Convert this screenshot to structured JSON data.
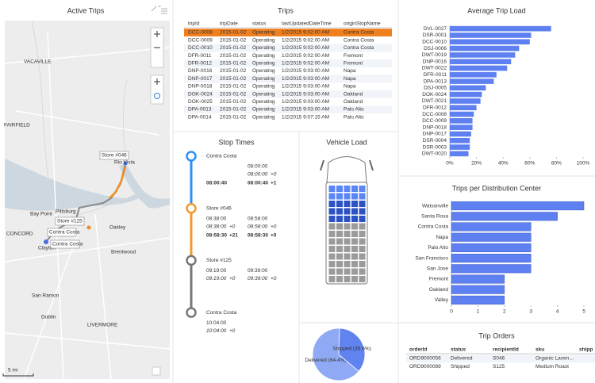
{
  "map": {
    "title": "Active Trips",
    "places": [
      "VACAVILLE",
      "FAIRFIELD",
      "Rio Vista",
      "Bay Point",
      "Pittsburg",
      "Oakley",
      "CONCORD",
      "Clayton",
      "Brentwood",
      "San Ramon",
      "Dublin",
      "LIVERMORE"
    ],
    "markers": [
      "Store #046",
      "Store #125",
      "Contra Costa",
      "Contra Costa"
    ],
    "scale": "5 mi"
  },
  "trips": {
    "title": "Trips",
    "columns": [
      "tripId",
      "tripDate",
      "status",
      "lastUpdatedDateTime",
      "originStopName"
    ],
    "rows": [
      [
        "DCC-0008",
        "2015-01-02",
        "Operating",
        "1/2/2015 9:02:00 AM",
        "Contra Costa"
      ],
      [
        "DCC-0009",
        "2015-01-02",
        "Operating",
        "1/2/2015 9:02:00 AM",
        "Contra Costa"
      ],
      [
        "DCC-0010",
        "2015-01-02",
        "Operating",
        "1/2/2015 9:02:00 AM",
        "Contra Costa"
      ],
      [
        "DFR-0011",
        "2015-01-02",
        "Operating",
        "1/2/2015 9:02:00 AM",
        "Fremont"
      ],
      [
        "DFR-0012",
        "2015-01-02",
        "Operating",
        "1/2/2015 9:02:00 AM",
        "Fremont"
      ],
      [
        "DNP-0016",
        "2015-01-02",
        "Operating",
        "1/2/2015 9:03:00 AM",
        "Napa"
      ],
      [
        "DNP-0017",
        "2015-01-02",
        "Operating",
        "1/2/2015 9:03:00 AM",
        "Napa"
      ],
      [
        "DNP-0018",
        "2015-01-02",
        "Operating",
        "1/2/2015 9:03:00 AM",
        "Napa"
      ],
      [
        "DOK-0024",
        "2015-01-02",
        "Operating",
        "1/2/2015 9:03:00 AM",
        "Oakland"
      ],
      [
        "DOK-0025",
        "2015-01-02",
        "Operating",
        "1/2/2015 9:03:00 AM",
        "Oakland"
      ],
      [
        "DPA-0013",
        "2015-01-02",
        "Operating",
        "1/2/2015 9:03:00 AM",
        "Palo Alto"
      ],
      [
        "DPA-0014",
        "2015-01-02",
        "Operating",
        "1/2/2015 9:07:15 AM",
        "Palo Alto"
      ]
    ],
    "selected_row": 0
  },
  "stop_times": {
    "title": "Stop Times",
    "stops": [
      {
        "name": "Contra Costa",
        "scheduled": {
          "departure": {
            "time": "08:00:00"
          }
        },
        "estimated": {
          "departure": {
            "time": "08:00:00",
            "delta": "+0"
          }
        },
        "actual": {
          "arrival": {
            "time": "08:00:40"
          },
          "departure": {
            "time": "08:00:40",
            "delta": "+1"
          }
        }
      },
      {
        "name": "Store #046",
        "scheduled": {
          "arrival": {
            "time": "08:38:00"
          },
          "departure": {
            "time": "08:58:00"
          }
        },
        "estimated": {
          "arrival": {
            "time": "08:38:00",
            "delta": "+0"
          },
          "departure": {
            "time": "08:58:00",
            "delta": "+0"
          }
        },
        "actual": {
          "arrival": {
            "time": "08:58:30",
            "delta": "+21"
          },
          "departure": {
            "time": "08:58:30",
            "delta": "+0"
          }
        }
      },
      {
        "name": "Store #125",
        "scheduled": {
          "arrival": {
            "time": "09:19:00"
          },
          "departure": {
            "time": "09:39:00"
          }
        },
        "estimated": {
          "arrival": {
            "time": "09:19:00",
            "delta": "+0"
          },
          "departure": {
            "time": "09:39:00",
            "delta": "+0"
          }
        }
      },
      {
        "name": "Contra Costa",
        "scheduled": {
          "arrival": {
            "time": "10:04:00"
          }
        },
        "estimated": {
          "arrival": {
            "time": "10:04:00",
            "delta": "+0"
          }
        }
      }
    ]
  },
  "vehicle_load": {
    "title": "Vehicle Load"
  },
  "chart_data": [
    {
      "type": "hbar",
      "title": "Average Trip Load",
      "categories": [
        "DVL-0027",
        "DSR-0001",
        "DCC-0010",
        "DSJ-0006",
        "DWT-0019",
        "DNP-0016",
        "DWT-0022",
        "DFR-0011",
        "DPA-0013",
        "DSJ-0005",
        "DOK-0024",
        "DWT-0021",
        "DFR-0012",
        "DCC-0008",
        "DCC-0009",
        "DNP-0018",
        "DNP-0017",
        "DSR-0004",
        "DSR-0003",
        "DWT-0020"
      ],
      "values": [
        76,
        61,
        60,
        52,
        49,
        46,
        43,
        35,
        33,
        27,
        24,
        23,
        20,
        18,
        17,
        17,
        16,
        15,
        15,
        14
      ],
      "color": "#5e80f0",
      "xlim": [
        0,
        100
      ],
      "xticks": [
        {
          "value": 0,
          "label": "0%"
        },
        {
          "value": 20,
          "label": "20%"
        },
        {
          "value": 40,
          "label": "40%"
        },
        {
          "value": 60,
          "label": "60%"
        },
        {
          "value": 80,
          "label": "80%"
        },
        {
          "value": 100,
          "label": "100%"
        }
      ]
    },
    {
      "type": "hbar",
      "title": "Trips per Distribution Center",
      "categories": [
        "Watsonville",
        "Santa Rosa",
        "Contra Costa",
        "Napa",
        "Palo Alto",
        "San Francisco",
        "San Jose",
        "Fremont",
        "Oakland",
        "Valley"
      ],
      "values": [
        5,
        4,
        3,
        3,
        3,
        3,
        3,
        2,
        2,
        2
      ],
      "color": "#5e80f0",
      "xlim": [
        0,
        5
      ],
      "xticks": [
        0,
        1,
        2,
        3,
        4,
        5
      ]
    },
    {
      "type": "pie",
      "values": [
        64.4,
        35.6
      ],
      "value_labels": [
        "Delivered (64.4%)",
        "Shipped (35.6%)"
      ],
      "colors": [
        "#8fa9f5",
        "#6183f0"
      ]
    }
  ],
  "trip_orders": {
    "title": "Trip Orders",
    "columns": [
      "orderId",
      "status",
      "recipientId",
      "sku",
      "shipp"
    ],
    "rows": [
      [
        "ORD9000056",
        "Delivered",
        "S046",
        "Organic Laven…"
      ],
      [
        "ORD9000089",
        "Shipped",
        "S125",
        "Medium Roast"
      ]
    ]
  }
}
